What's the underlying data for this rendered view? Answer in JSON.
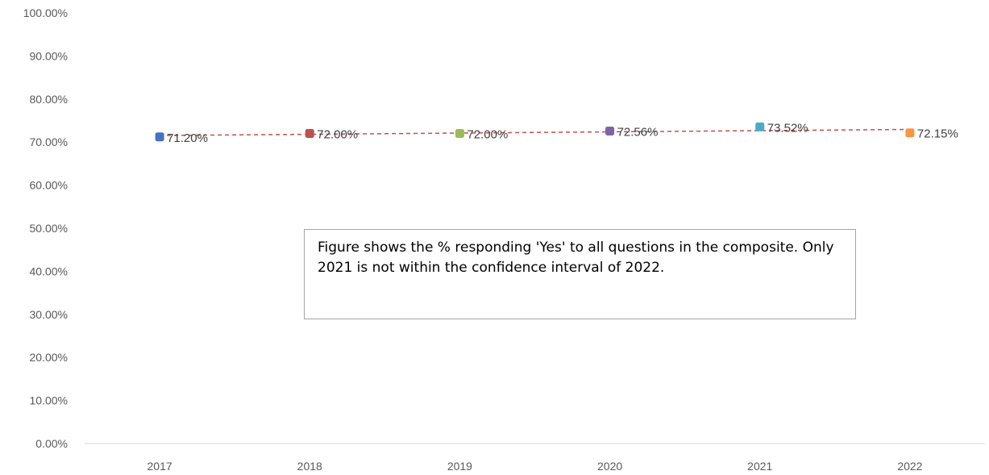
{
  "chart_data": {
    "type": "scatter",
    "categories": [
      "2017",
      "2018",
      "2019",
      "2020",
      "2021",
      "2022"
    ],
    "values": [
      71.2,
      72.0,
      72.0,
      72.56,
      73.52,
      72.15
    ],
    "data_labels": [
      "71.20%",
      "72.00%",
      "72.00%",
      "72.56%",
      "73.52%",
      "72.15%"
    ],
    "point_colors": [
      "#4472c4",
      "#c0504d",
      "#9bbb59",
      "#8064a2",
      "#4bacc6",
      "#f79646"
    ],
    "trendline": {
      "type": "linear",
      "color": "#c0504d",
      "style": "dashed"
    },
    "ylim": [
      0,
      100
    ],
    "yticks": [
      "0.00%",
      "10.00%",
      "20.00%",
      "30.00%",
      "40.00%",
      "50.00%",
      "60.00%",
      "70.00%",
      "80.00%",
      "90.00%",
      "100.00%"
    ],
    "title": "",
    "xlabel": "",
    "ylabel": "",
    "legend": "none",
    "grid": false
  },
  "annotation": {
    "text": "Figure shows the % responding 'Yes' to all questions in the composite. Only 2021 is not within the confidence interval of 2022."
  }
}
